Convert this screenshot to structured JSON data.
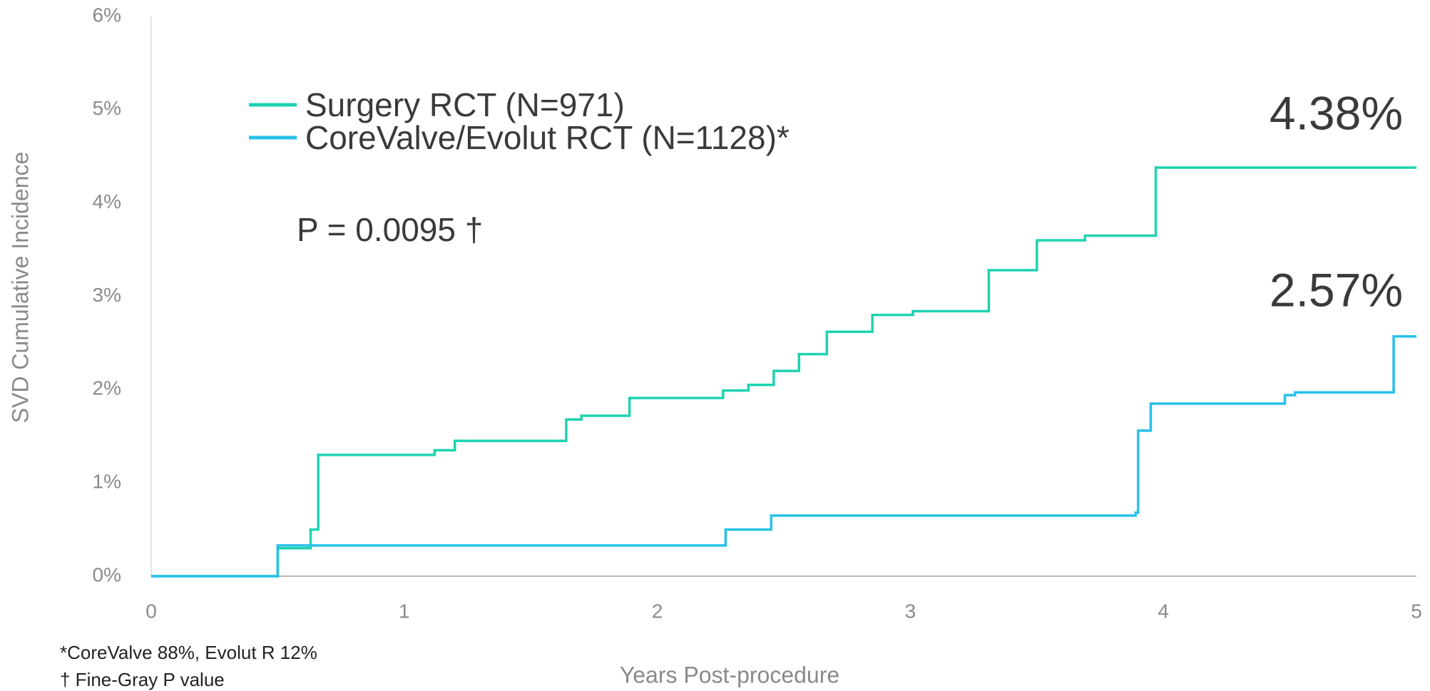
{
  "chart_data": {
    "type": "step",
    "y_label": "SVD Cumulative Incidence",
    "x_label": "Years Post-procedure",
    "xlim": [
      0,
      5
    ],
    "xticks": [
      0,
      1,
      2,
      3,
      4,
      5
    ],
    "ylim": [
      0,
      6
    ],
    "yticks": [
      {
        "value": 0,
        "label": "0%"
      },
      {
        "value": 1,
        "label": "1%"
      },
      {
        "value": 2,
        "label": "2%"
      },
      {
        "value": 3,
        "label": "3%"
      },
      {
        "value": 4,
        "label": "4%"
      },
      {
        "value": 5,
        "label": "5%"
      },
      {
        "value": 6,
        "label": "6%"
      }
    ],
    "series": [
      {
        "name": "Surgery RCT (N=971)",
        "color": "#1fd3b0",
        "x": [
          0,
          0.5,
          0.63,
          0.66,
          1.12,
          1.2,
          1.64,
          1.7,
          1.89,
          2.26,
          2.36,
          2.46,
          2.56,
          2.67,
          2.85,
          3.01,
          3.31,
          3.5,
          3.69,
          3.97,
          5
        ],
        "values": [
          0,
          0.3,
          0.5,
          1.3,
          1.35,
          1.45,
          1.68,
          1.72,
          1.91,
          1.99,
          2.05,
          2.2,
          2.38,
          2.62,
          2.8,
          2.84,
          3.28,
          3.6,
          3.65,
          4.38,
          4.38
        ],
        "end_label": "4.38%"
      },
      {
        "name": "CoreValve/Evolut RCT (N=1128)*",
        "color": "#27c1e8",
        "x": [
          0,
          0.5,
          2.27,
          2.45,
          3.89,
          3.9,
          3.95,
          4.48,
          4.52,
          4.91,
          5
        ],
        "values": [
          0,
          0.33,
          0.5,
          0.65,
          0.68,
          1.56,
          1.85,
          1.94,
          1.97,
          2.57,
          2.57
        ],
        "end_label": "2.57%"
      }
    ],
    "annotation": "P = 0.0095 †",
    "footnotes": [
      "*CoreValve 88%, Evolut R 12%",
      "† Fine-Gray P value"
    ]
  }
}
